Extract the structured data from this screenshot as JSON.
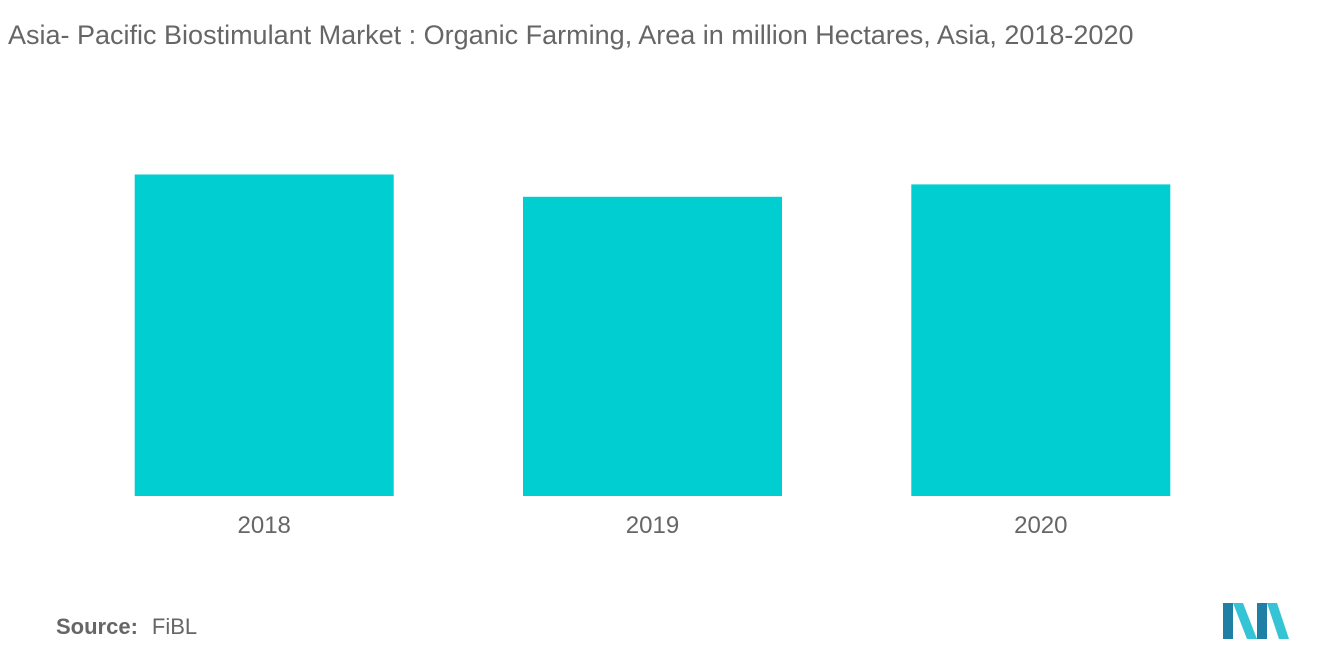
{
  "title": "Asia- Pacific Biostimulant Market : Organic Farming, Area in million Hectares, Asia, 2018-2020",
  "source": {
    "label": "Source:",
    "value": "FiBL"
  },
  "colors": {
    "bar": "#00CED1",
    "text": "#666666",
    "logo_dark": "#1F7FA5",
    "logo_light": "#35C4D6"
  },
  "chart_data": {
    "type": "bar",
    "categories": [
      "2018",
      "2019",
      "2020"
    ],
    "values": [
      6.5,
      6.05,
      6.3
    ],
    "title": "Asia- Pacific Biostimulant Market : Organic Farming, Area in million Hectares, Asia, 2018-2020",
    "xlabel": "",
    "ylabel": "",
    "ylim": [
      0,
      7.4
    ],
    "grid": false,
    "legend": "none",
    "value_axis_shown": false
  }
}
